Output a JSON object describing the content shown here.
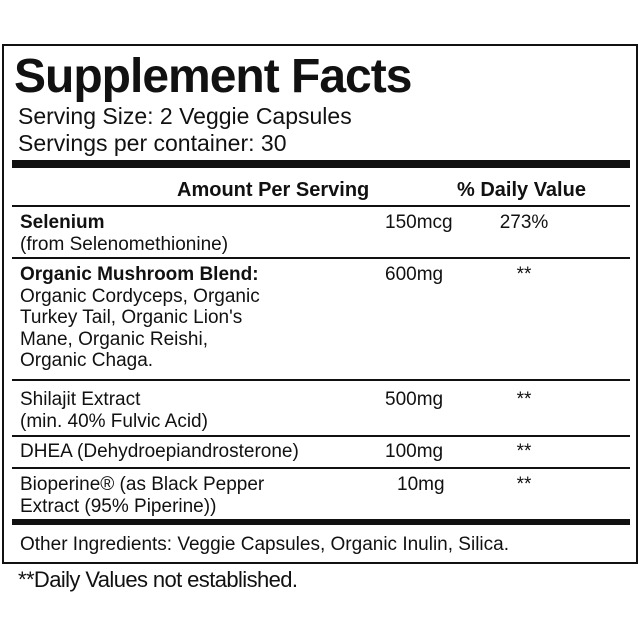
{
  "title": "Supplement Facts",
  "serving_size": "Serving Size: 2 Veggie Capsules",
  "servings_per_container": "Servings per container: 30",
  "header": {
    "amount": "Amount Per Serving",
    "daily_value": "% Daily Value"
  },
  "rows": [
    {
      "lines": [
        "Selenium",
        "(from Selenomethionine)"
      ],
      "amount": "150mcg",
      "daily_value": "273%"
    },
    {
      "lines": [
        "Organic Mushroom Blend:",
        "Organic Cordyceps, Organic",
        "Turkey Tail, Organic Lion's",
        "Mane, Organic Reishi,",
        "Organic Chaga."
      ],
      "amount": "600mg",
      "daily_value": "**"
    },
    {
      "lines": [
        "Shilajit Extract",
        "(min. 40% Fulvic Acid)"
      ],
      "amount": "500mg",
      "daily_value": "**"
    },
    {
      "lines": [
        "DHEA (Dehydroepiandrosterone)"
      ],
      "amount": "100mg",
      "daily_value": "**"
    },
    {
      "lines": [
        "Bioperine® (as Black Pepper",
        "Extract (95% Piperine))"
      ],
      "amount": "10mg",
      "daily_value": "**"
    }
  ],
  "other_ingredients": "Other Ingredients: Veggie Capsules, Organic Inulin, Silica.",
  "footnote": "**Daily Values not established."
}
